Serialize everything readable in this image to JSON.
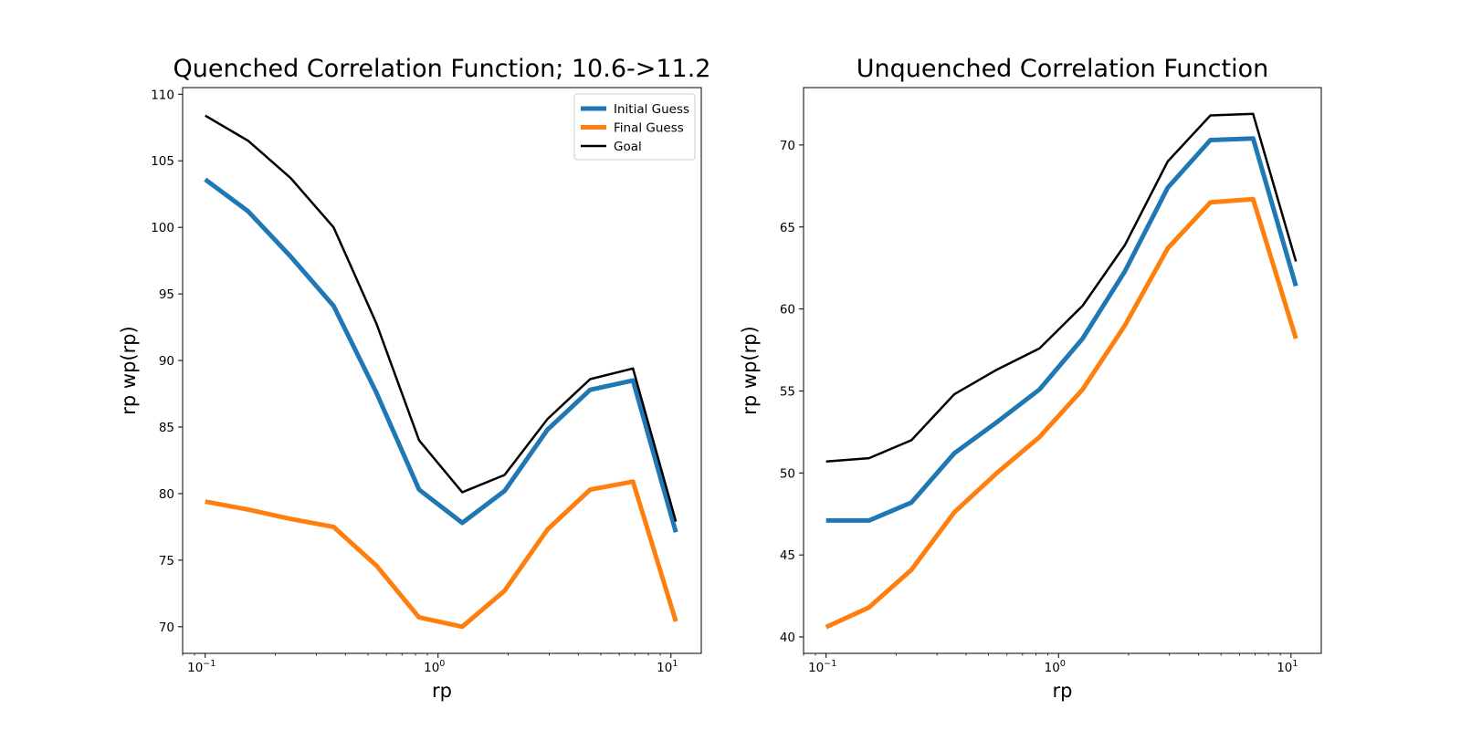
{
  "colors": {
    "initial": "#1f77b4",
    "final": "#ff7f0e",
    "goal": "#000000"
  },
  "chart_data": [
    {
      "type": "line",
      "title": "Quenched Correlation Function; 10.6->11.2",
      "xlabel": "rp",
      "ylabel": "rp wp(rp)",
      "xscale": "log",
      "xlim": [
        0.08,
        13.5
      ],
      "ylim": [
        68,
        110.5
      ],
      "grid": false,
      "legend": {
        "placement": "top-right",
        "entries": [
          "Initial Guess",
          "Final Guess",
          "Goal"
        ]
      },
      "x_ticks": [
        {
          "value": 0.1,
          "base": "10",
          "exp": "−1"
        },
        {
          "value": 1,
          "base": "10",
          "exp": "0"
        },
        {
          "value": 10,
          "base": "10",
          "exp": "1"
        }
      ],
      "y_ticks": [
        "70",
        "75",
        "80",
        "85",
        "90",
        "95",
        "100",
        "105",
        "110"
      ],
      "x": [
        0.1,
        0.153,
        0.233,
        0.356,
        0.543,
        0.829,
        1.27,
        1.93,
        2.95,
        4.5,
        6.87,
        10.5
      ],
      "series": [
        {
          "name": "Initial Guess",
          "color": "#1f77b4",
          "style": "thick",
          "values": [
            103.6,
            101.2,
            97.8,
            94.1,
            87.6,
            80.3,
            77.8,
            80.2,
            84.8,
            87.8,
            88.5,
            77.1
          ]
        },
        {
          "name": "Final Guess",
          "color": "#ff7f0e",
          "style": "thick",
          "values": [
            79.4,
            78.8,
            78.1,
            77.5,
            74.6,
            70.7,
            70.0,
            72.7,
            77.3,
            80.3,
            80.9,
            70.4
          ]
        },
        {
          "name": "Goal",
          "color": "#000000",
          "style": "thin",
          "values": [
            108.4,
            106.5,
            103.7,
            100.0,
            92.8,
            84.0,
            80.1,
            81.4,
            85.6,
            88.6,
            89.4,
            77.9
          ]
        }
      ]
    },
    {
      "type": "line",
      "title": "Unquenched Correlation Function",
      "xlabel": "rp",
      "ylabel": "rp wp(rp)",
      "xscale": "log",
      "xlim": [
        0.08,
        13.5
      ],
      "ylim": [
        39,
        73.5
      ],
      "grid": false,
      "legend": null,
      "x_ticks": [
        {
          "value": 0.1,
          "base": "10",
          "exp": "−1"
        },
        {
          "value": 1,
          "base": "10",
          "exp": "0"
        },
        {
          "value": 10,
          "base": "10",
          "exp": "1"
        }
      ],
      "y_ticks": [
        "40",
        "45",
        "50",
        "55",
        "60",
        "65",
        "70"
      ],
      "x": [
        0.1,
        0.153,
        0.233,
        0.356,
        0.543,
        0.829,
        1.27,
        1.93,
        2.95,
        4.5,
        6.87,
        10.5
      ],
      "series": [
        {
          "name": "Initial Guess",
          "color": "#1f77b4",
          "style": "thick",
          "values": [
            47.1,
            47.1,
            48.2,
            51.2,
            53.1,
            55.1,
            58.2,
            62.3,
            67.4,
            70.3,
            70.4,
            61.4
          ]
        },
        {
          "name": "Final Guess",
          "color": "#ff7f0e",
          "style": "thick",
          "values": [
            40.6,
            41.8,
            44.1,
            47.6,
            50.0,
            52.2,
            55.1,
            59.0,
            63.7,
            66.5,
            66.7,
            58.2
          ]
        },
        {
          "name": "Goal",
          "color": "#000000",
          "style": "thin",
          "values": [
            50.7,
            50.9,
            52.0,
            54.8,
            56.3,
            57.6,
            60.2,
            63.9,
            69.0,
            71.8,
            71.9,
            62.9
          ]
        }
      ]
    }
  ]
}
